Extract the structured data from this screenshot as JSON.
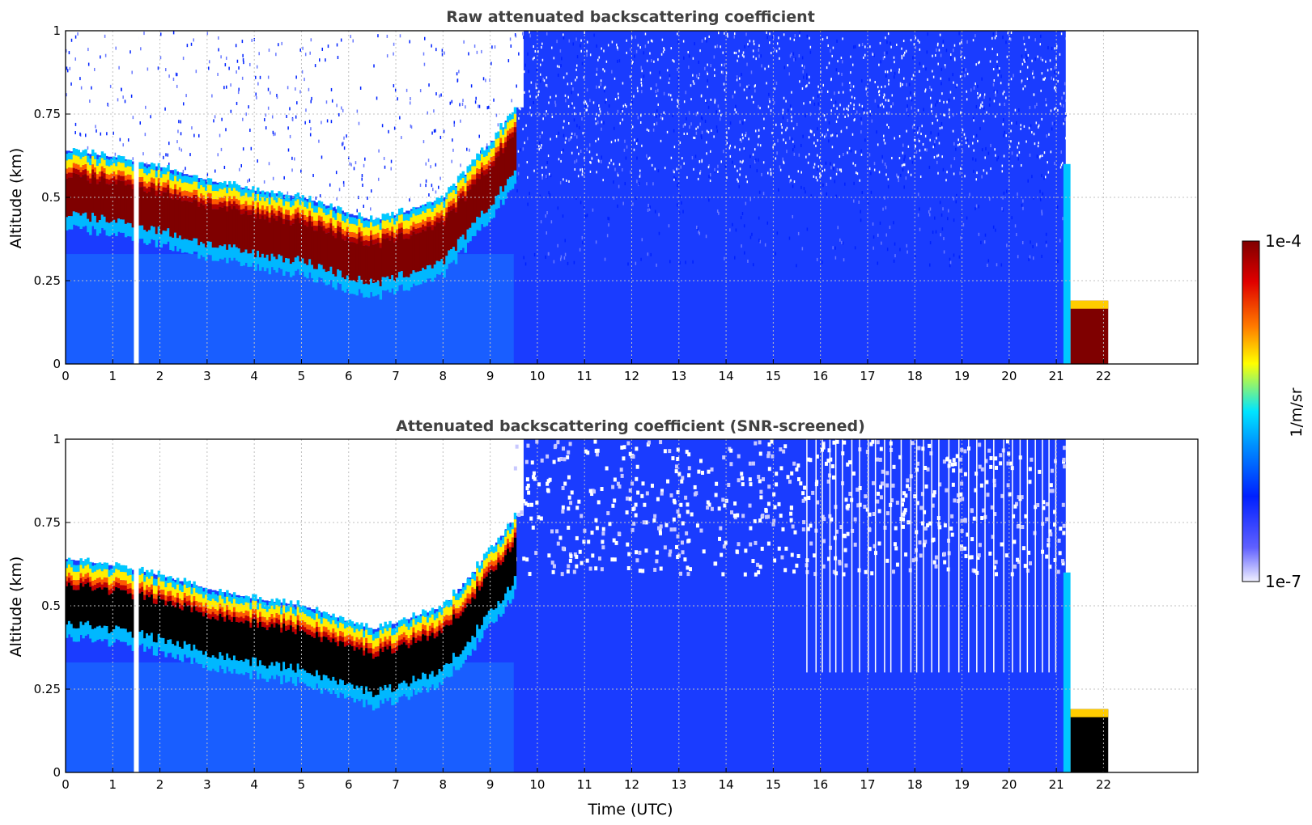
{
  "chart_data": [
    {
      "type": "heatmap",
      "title": "Raw attenuated backscattering coefficient",
      "ylabel": "Altitude (km)",
      "xlabel": "",
      "xlim": [
        0,
        24
      ],
      "ylim": [
        0,
        1
      ],
      "xticks": [
        "0",
        "1",
        "2",
        "3",
        "4",
        "5",
        "6",
        "7",
        "8",
        "9",
        "10",
        "11",
        "12",
        "13",
        "14",
        "15",
        "16",
        "17",
        "18",
        "19",
        "20",
        "21",
        "22"
      ],
      "yticks": [
        "0",
        "0.25",
        "0.5",
        "0.75",
        "1"
      ],
      "grid": true,
      "data_end_hour": 22.1,
      "gap_hours": [
        1.5
      ],
      "layer": {
        "description": "boundary layer top aerosol",
        "time": [
          0,
          1,
          2,
          3,
          4,
          5,
          6,
          6.5,
          7,
          8,
          9,
          9.5
        ],
        "altitude_km": [
          0.52,
          0.5,
          0.47,
          0.43,
          0.4,
          0.38,
          0.33,
          0.31,
          0.33,
          0.38,
          0.55,
          0.65
        ]
      },
      "late_layer": {
        "time": [
          21.3,
          22.1
        ],
        "altitude_km": [
          0.0,
          0.17
        ]
      }
    },
    {
      "type": "heatmap",
      "title": "Attenuated backscattering coefficient (SNR-screened)",
      "ylabel": "Altitude (km)",
      "xlabel": "Time (UTC)",
      "xlim": [
        0,
        24
      ],
      "ylim": [
        0,
        1
      ],
      "xticks": [
        "0",
        "1",
        "2",
        "3",
        "4",
        "5",
        "6",
        "7",
        "8",
        "9",
        "10",
        "11",
        "12",
        "13",
        "14",
        "15",
        "16",
        "17",
        "18",
        "19",
        "20",
        "21",
        "22"
      ],
      "yticks": [
        "0",
        "0.25",
        "0.5",
        "0.75",
        "1"
      ],
      "grid": true,
      "data_end_hour": 22.1,
      "gap_hours": [
        1.5
      ]
    }
  ],
  "colorbar": {
    "max_label": "1e-4",
    "min_label": "1e-7",
    "unit": "1/m/sr",
    "colors": [
      "#7f0000",
      "#ff0000",
      "#ffff00",
      "#00ffff",
      "#0000ff",
      "#f0f0ff"
    ]
  }
}
